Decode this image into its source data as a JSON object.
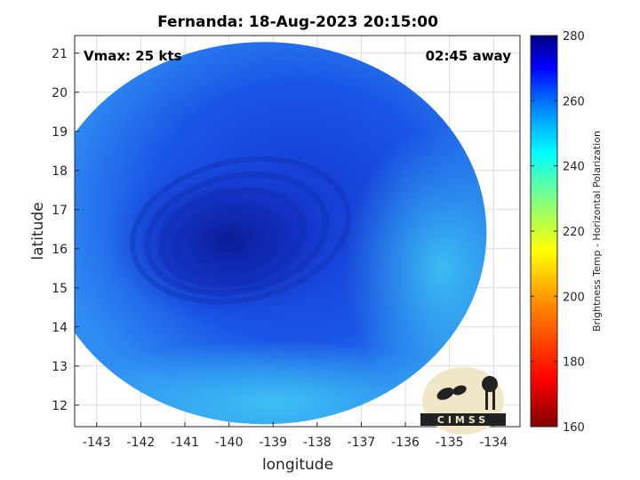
{
  "chart_data": {
    "type": "heatmap",
    "title": "Fernanda: 18-Aug-2023 20:15:00",
    "xlabel": "longitude",
    "ylabel": "latitude",
    "xlim": [
      -143.5,
      -133.4
    ],
    "ylim": [
      11.45,
      21.45
    ],
    "xticks": [
      "-143",
      "-142",
      "-141",
      "-140",
      "-139",
      "-138",
      "-137",
      "-136",
      "-135",
      "-134"
    ],
    "yticks": [
      "21",
      "20",
      "19",
      "18",
      "17",
      "16",
      "15",
      "14",
      "13",
      "12"
    ],
    "grid": true,
    "annotations": {
      "vmax": "Vmax: 25 kts",
      "time_away": "02:45 away"
    },
    "colorbar": {
      "label": "Brightness Temp - Horizontal Polarization",
      "min": 160,
      "max": 280,
      "ticks": [
        "280",
        "260",
        "240",
        "220",
        "200",
        "180",
        "160"
      ]
    },
    "storm_center": {
      "lon": -140.0,
      "lat": 16.2
    },
    "swath_center": {
      "lon": -139.2,
      "lat": 16.4
    }
  },
  "logo": {
    "text": "CIMSS"
  },
  "colors": {
    "text": "#262626",
    "grid": "#dcdcdc",
    "axis": "#262626"
  }
}
